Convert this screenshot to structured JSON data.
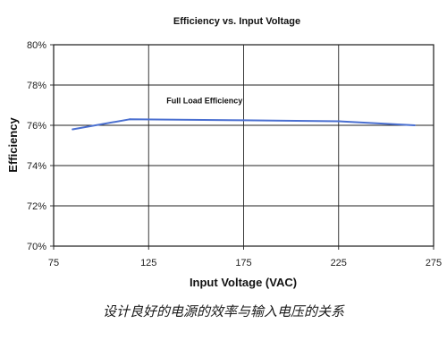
{
  "chart_data": {
    "type": "line",
    "title": "Efficiency vs. Input Voltage",
    "xlabel": "Input Voltage (VAC)",
    "ylabel": "Efficiency",
    "xlim": [
      75,
      275
    ],
    "ylim": [
      70,
      80
    ],
    "x_ticks": [
      75,
      125,
      175,
      225,
      275
    ],
    "x_tick_labels": [
      "75",
      "125",
      "175",
      "225",
      "275"
    ],
    "y_ticks": [
      70,
      72,
      74,
      76,
      78,
      80
    ],
    "y_tick_labels": [
      "70%",
      "72%",
      "74%",
      "76%",
      "78%",
      "80%"
    ],
    "grid": true,
    "series": [
      {
        "name": "Full Load Efficiency",
        "color": "#4a6fd0",
        "x": [
          85,
          115,
          175,
          225,
          265
        ],
        "y": [
          75.8,
          76.3,
          76.25,
          76.2,
          76.0
        ]
      }
    ],
    "annotations": [
      {
        "text": "Full Load Efficiency",
        "x": 125,
        "y": 77.1
      }
    ]
  },
  "caption": "设计良好的电源的效率与输入电压的关系"
}
